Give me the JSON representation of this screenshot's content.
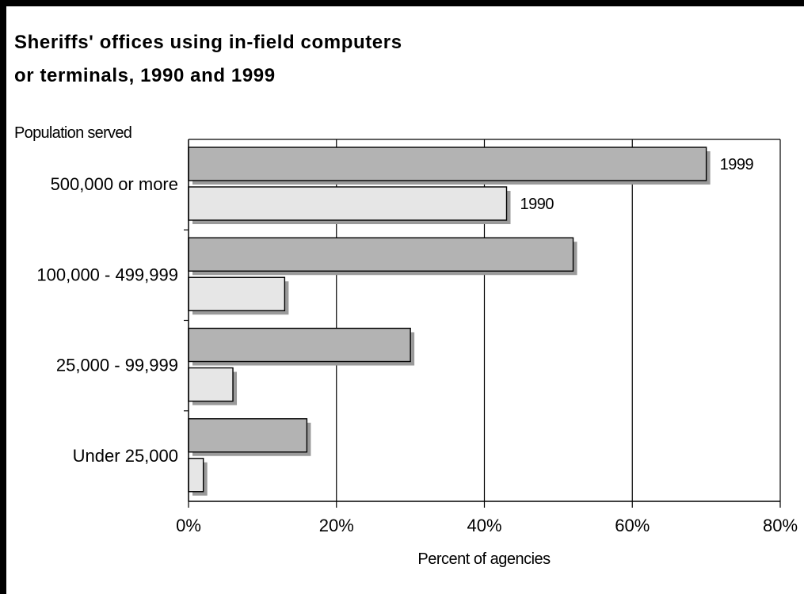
{
  "chart_data": {
    "type": "bar",
    "orientation": "horizontal",
    "title_lines": [
      "Sheriffs' offices using in-field computers",
      "or terminals, 1990 and 1999"
    ],
    "ylabel": "Population served",
    "xlabel": "Percent of agencies",
    "categories": [
      "500,000 or more",
      "100,000 - 499,999",
      "25,000 - 99,999",
      "Under 25,000"
    ],
    "series": [
      {
        "name": "1999",
        "values": [
          70,
          52,
          30,
          16
        ],
        "color": "#b3b3b3"
      },
      {
        "name": "1990",
        "values": [
          43,
          13,
          6,
          2
        ],
        "color": "#e6e6e6"
      }
    ],
    "xlim": [
      0,
      80
    ],
    "xticks": [
      0,
      20,
      40,
      60,
      80
    ],
    "xtick_labels": [
      "0%",
      "20%",
      "40%",
      "60%",
      "80%"
    ],
    "grid": "vertical",
    "legend": "direct labels on first category bars"
  }
}
